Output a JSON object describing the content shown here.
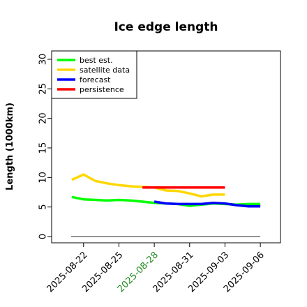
{
  "chart_data": {
    "type": "line",
    "title": "Ice edge length",
    "xlabel": "",
    "ylabel": "Length (1000km)",
    "ylim": [
      0,
      30
    ],
    "xlim": [
      "2025-08-20",
      "2025-09-07"
    ],
    "x_ticks": [
      "2025-08-22",
      "2025-08-25",
      "2025-08-28",
      "2025-08-31",
      "2025-09-03",
      "2025-09-06"
    ],
    "highlighted_x_tick": "2025-08-28",
    "y_ticks": [
      0,
      5,
      10,
      15,
      20,
      25,
      30
    ],
    "grid": false,
    "legend_position": "top-left",
    "baseline_y": 0,
    "series": [
      {
        "name": "best est.",
        "color": "#00ff00",
        "x": [
          "2025-08-21",
          "2025-08-22",
          "2025-08-23",
          "2025-08-24",
          "2025-08-25",
          "2025-08-26",
          "2025-08-27",
          "2025-08-28",
          "2025-08-29",
          "2025-08-30",
          "2025-08-31",
          "2025-09-01",
          "2025-09-02",
          "2025-09-03",
          "2025-09-04",
          "2025-09-05",
          "2025-09-06"
        ],
        "y": [
          6.7,
          6.3,
          6.2,
          6.1,
          6.2,
          6.1,
          5.9,
          5.7,
          5.6,
          5.5,
          5.2,
          5.4,
          5.6,
          5.5,
          5.4,
          5.5,
          5.5
        ]
      },
      {
        "name": "satellite data",
        "color": "#ffd700",
        "x": [
          "2025-08-21",
          "2025-08-22",
          "2025-08-23",
          "2025-08-24",
          "2025-08-25",
          "2025-08-26",
          "2025-08-27",
          "2025-08-28",
          "2025-08-29",
          "2025-08-30",
          "2025-08-31",
          "2025-09-01",
          "2025-09-02",
          "2025-09-03"
        ],
        "y": [
          9.6,
          10.5,
          9.4,
          9.0,
          8.7,
          8.5,
          8.4,
          8.3,
          7.8,
          7.7,
          7.3,
          6.8,
          7.1,
          7.1
        ]
      },
      {
        "name": "forecast",
        "color": "#0000ff",
        "x": [
          "2025-08-28",
          "2025-08-29",
          "2025-08-30",
          "2025-08-31",
          "2025-09-01",
          "2025-09-02",
          "2025-09-03",
          "2025-09-04",
          "2025-09-05",
          "2025-09-06"
        ],
        "y": [
          5.9,
          5.6,
          5.5,
          5.5,
          5.5,
          5.7,
          5.6,
          5.3,
          5.1,
          5.1
        ]
      },
      {
        "name": "persistence",
        "color": "#ff0000",
        "x": [
          "2025-08-27",
          "2025-09-03"
        ],
        "y": [
          8.3,
          8.3
        ]
      }
    ]
  }
}
